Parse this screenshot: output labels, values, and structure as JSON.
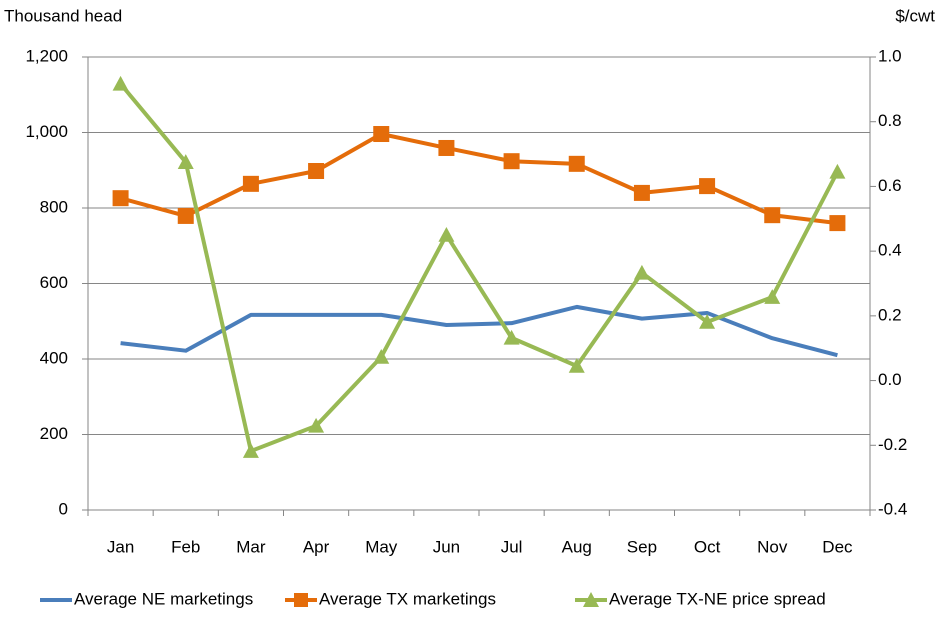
{
  "chart_data": {
    "type": "line",
    "y_axis_label": "Thousand head",
    "y2_axis_label": "$/cwt",
    "categories": [
      "Jan",
      "Feb",
      "Mar",
      "Apr",
      "May",
      "Jun",
      "Jul",
      "Aug",
      "Sep",
      "Oct",
      "Nov",
      "Dec"
    ],
    "series": [
      {
        "name": "Average NE marketings",
        "color": "#4a7ebb",
        "marker": "none",
        "axis": "y",
        "values": [
          442,
          422,
          517,
          517,
          517,
          490,
          495,
          538,
          507,
          522,
          455,
          410
        ]
      },
      {
        "name": "Average TX marketings",
        "color": "#e46c0a",
        "marker": "square",
        "axis": "y",
        "values": [
          826,
          779,
          864,
          898,
          996,
          959,
          924,
          917,
          840,
          858,
          781,
          760
        ]
      },
      {
        "name": "Average TX-NE price spread",
        "color": "#98b954",
        "marker": "triangle",
        "axis": "y2",
        "values": [
          0.917,
          0.675,
          -0.218,
          -0.14,
          0.073,
          0.45,
          0.132,
          0.045,
          0.333,
          0.181,
          0.258,
          0.645
        ]
      }
    ],
    "ylim": [
      0,
      1200
    ],
    "yticks": [
      0,
      200,
      400,
      600,
      800,
      {
        "value": 1000,
        "label": "1,000"
      },
      {
        "value": 1200,
        "label": "1,200"
      }
    ],
    "y2lim": [
      -0.4,
      1.0
    ],
    "y2ticks": [
      -0.4,
      -0.2,
      {
        "value": 0,
        "label": "0.0"
      },
      0.2,
      0.4,
      0.6,
      0.8,
      {
        "value": 1,
        "label": "1.0"
      }
    ],
    "grid": true,
    "legend": "bottom"
  }
}
